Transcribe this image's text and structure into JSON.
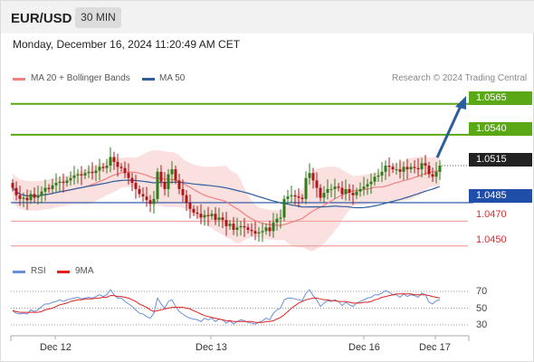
{
  "header": {
    "symbol": "EUR/USD",
    "interval": "30 MIN"
  },
  "timestamp": "Monday, December 16, 2024 11:20:49 AM CET",
  "legend": {
    "ma20": {
      "label": "MA 20 + Bollinger Bands",
      "color": "#f08080"
    },
    "ma50": {
      "label": "MA 50",
      "color": "#2e5d9e"
    }
  },
  "credit": "Research © 2024 Trading Central",
  "price_levels": {
    "resistance_2": "1.0565",
    "resistance_1": "1.0540",
    "last_price": "1.0515",
    "pivot": "1.0485",
    "support_1": "1.0470",
    "support_2": "1.0450"
  },
  "rsi_legend": {
    "rsi": {
      "label": "RSI",
      "color": "#6a8fd8"
    },
    "ma9": {
      "label": "9MA",
      "color": "#e02020"
    }
  },
  "rsi_ticks": [
    "70",
    "50",
    "30"
  ],
  "dates": [
    "Dec 12",
    "Dec 13",
    "Dec 16",
    "Dec 17"
  ],
  "colors": {
    "green": "#5aa816",
    "blue": "#1f4fa8",
    "red": "#e02020",
    "candle_up": "#2e7d1a",
    "candle_down": "#b01818",
    "band_fill": "#fadada"
  },
  "chart_data": {
    "type": "candlestick",
    "price_ylim": [
      1.0441,
      1.0578
    ],
    "close": [
      1.0497,
      1.0491,
      1.0488,
      1.0489,
      1.0487,
      1.0492,
      1.0489,
      1.0491,
      1.0494,
      1.0497,
      1.0496,
      1.0499,
      1.0501,
      1.0502,
      1.0501,
      1.0503,
      1.0505,
      1.0507,
      1.0508,
      1.0507,
      1.0509,
      1.051,
      1.0509,
      1.0511,
      1.0514,
      1.0513,
      1.0515,
      1.0522,
      1.0518,
      1.0514,
      1.0513,
      1.0509,
      1.0505,
      1.0501,
      1.0496,
      1.0492,
      1.049,
      1.0487,
      1.0484,
      1.0488,
      1.051,
      1.0502,
      1.0496,
      1.0508,
      1.0512,
      1.0503,
      1.0496,
      1.0491,
      1.0485,
      1.048,
      1.0477,
      1.0476,
      1.0473,
      1.0475,
      1.0474,
      1.0476,
      1.0471,
      1.0473,
      1.0471,
      1.0466,
      1.0468,
      1.0463,
      1.0465,
      1.0466,
      1.0465,
      1.0463,
      1.0462,
      1.046,
      1.0461,
      1.0462,
      1.0465,
      1.0462,
      1.0469,
      1.0472,
      1.0473,
      1.0488,
      1.049,
      1.0491,
      1.049,
      1.0489,
      1.0488,
      1.0505,
      1.0509,
      1.0503,
      1.0497,
      1.0489,
      1.0493,
      1.0496,
      1.0496,
      1.0498,
      1.0497,
      1.0492,
      1.0496,
      1.0493,
      1.0491,
      1.0494,
      1.0496,
      1.0498,
      1.05,
      1.0502,
      1.0506,
      1.0507,
      1.051,
      1.0515,
      1.0514,
      1.0512,
      1.0512,
      1.051,
      1.0514,
      1.0512,
      1.0514,
      1.0513,
      1.0512,
      1.0517,
      1.0515,
      1.0508,
      1.0506,
      1.051,
      1.0515
    ],
    "rsi": [
      47,
      44,
      43,
      44,
      43,
      48,
      46,
      48,
      52,
      55,
      55,
      57,
      58,
      60,
      58,
      60,
      61,
      62,
      63,
      61,
      62,
      63,
      62,
      64,
      66,
      64,
      66,
      72,
      66,
      62,
      62,
      58,
      55,
      52,
      48,
      44,
      43,
      40,
      38,
      44,
      62,
      55,
      50,
      58,
      60,
      52,
      46,
      43,
      40,
      38,
      37,
      36,
      34,
      38,
      36,
      38,
      34,
      37,
      36,
      32,
      35,
      31,
      34,
      36,
      35,
      33,
      32,
      31,
      33,
      35,
      38,
      36,
      44,
      48,
      50,
      60,
      62,
      62,
      61,
      60,
      59,
      68,
      72,
      65,
      60,
      52,
      56,
      59,
      58,
      60,
      58,
      53,
      57,
      54,
      52,
      56,
      58,
      60,
      62,
      63,
      66,
      66,
      68,
      71,
      69,
      66,
      66,
      63,
      67,
      64,
      66,
      65,
      63,
      68,
      66,
      57,
      55,
      59,
      60
    ],
    "rsi_ma9": [
      47,
      46,
      45,
      45,
      45,
      45,
      45,
      45,
      46,
      48,
      49,
      50,
      52,
      54,
      55,
      56,
      58,
      59,
      60,
      60,
      61,
      61,
      61,
      62,
      62,
      63,
      63,
      65,
      65,
      64,
      64,
      63,
      62,
      60,
      58,
      55,
      53,
      51,
      48,
      46,
      47,
      48,
      49,
      50,
      51,
      51,
      51,
      51,
      50,
      49,
      47,
      45,
      43,
      41,
      40,
      39,
      38,
      37,
      36,
      35,
      35,
      34,
      34,
      34,
      34,
      34,
      34,
      33,
      33,
      33,
      34,
      34,
      35,
      37,
      39,
      42,
      46,
      50,
      53,
      56,
      58,
      60,
      61,
      62,
      62,
      61,
      60,
      60,
      59,
      59,
      58,
      58,
      58,
      57,
      56,
      56,
      56,
      57,
      57,
      58,
      60,
      61,
      63,
      64,
      65,
      66,
      67,
      67,
      67,
      67,
      67,
      66,
      66,
      66,
      66,
      65,
      64,
      63,
      62
    ]
  }
}
